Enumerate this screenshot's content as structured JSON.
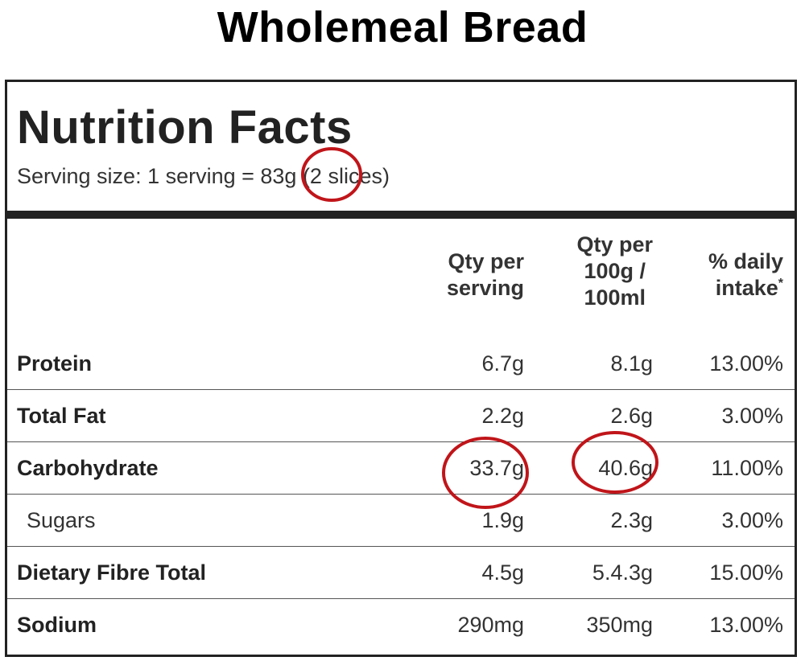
{
  "title": "Wholemeal Bread",
  "label": {
    "heading": "Nutrition Facts",
    "serving_size": "Serving size: 1 serving = 83g (2 slices)",
    "columns": {
      "per_serving": [
        "Qty per",
        "serving"
      ],
      "per_100": [
        "Qty per",
        "100g /",
        "100ml"
      ],
      "daily_intake": [
        "% daily",
        "intake"
      ],
      "daily_intake_marker": "*"
    },
    "rows": [
      {
        "name": "Protein",
        "per_serving": "6.7g",
        "per_100": "8.1g",
        "daily": "13.00%"
      },
      {
        "name": "Total Fat",
        "per_serving": "2.2g",
        "per_100": "2.6g",
        "daily": "3.00%"
      },
      {
        "name": "Carbohydrate",
        "per_serving": "33.7g",
        "per_100": "40.6g",
        "daily": "11.00%"
      },
      {
        "name": "Sugars",
        "per_serving": "1.9g",
        "per_100": "2.3g",
        "daily": "3.00%"
      },
      {
        "name": "Dietary Fibre Total",
        "per_serving": "4.5g",
        "per_100": "5.4.3g",
        "daily": "15.00%"
      },
      {
        "name": "Sodium",
        "per_serving": "290mg",
        "per_100": "350mg",
        "daily": "13.00%"
      }
    ]
  },
  "annotation_color": "#c0151a"
}
